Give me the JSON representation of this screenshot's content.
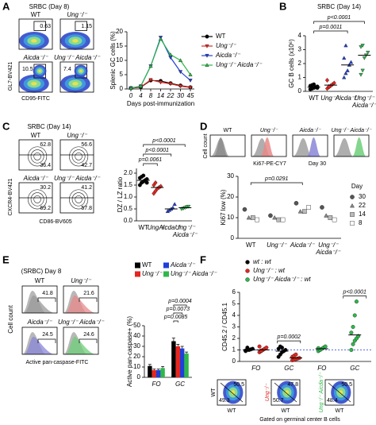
{
  "panels": {
    "A": {
      "label": "A",
      "title": "SRBC (Day 8)",
      "y_axis": "GL7-BV421",
      "x_axis": "CD95-FITC",
      "plots": [
        {
          "name": "WT",
          "value": 0.63
        },
        {
          "name": "Ung⁻/⁻",
          "value": 1.15
        },
        {
          "name": "Aicda⁻/⁻",
          "value": 10.5
        },
        {
          "name": "Ung⁻/⁻ Aicda⁻/⁻",
          "value": 7.4
        }
      ]
    },
    "B": {
      "label": "B"
    },
    "C": {
      "label": "C",
      "title": "SRBC (Day 14)",
      "y_axis": "CXCR4-BV421",
      "x_axis": "CD86-BV605",
      "plots": [
        {
          "name": "WT",
          "top": 62.8,
          "bottom": 36.4
        },
        {
          "name": "Ung⁻/⁻",
          "top": 56.6,
          "bottom": 42.7
        },
        {
          "name": "Aicda⁻/⁻",
          "top": 30.2,
          "bottom": 69.2
        },
        {
          "name": "Ung⁻/⁻ Aicda⁻/⁻",
          "top": 41.2,
          "bottom": 57.8
        }
      ]
    },
    "D": {
      "label": "D",
      "y_axis": "Cell count",
      "x_axis": "Ki67-PE-CY7",
      "day": "Day 30",
      "plots": [
        {
          "name": "WT",
          "color": "#8c8c8c"
        },
        {
          "name": "Ung⁻/⁻",
          "color": "#e98888"
        },
        {
          "name": "Aicda⁻/⁻",
          "color": "#8a86d8"
        },
        {
          "name": "Ung⁻/⁻ Aicda⁻/⁻",
          "color": "#6fcf7a"
        }
      ]
    },
    "E": {
      "label": "E",
      "title": "(SRBC) Day 8",
      "y_axis": "Cell count",
      "x_axis": "Active pan-caspase-FITC",
      "plots": [
        {
          "name": "WT",
          "value": 41.8,
          "color": "#9a9a9a"
        },
        {
          "name": "Ung⁻/⁻",
          "value": 21.6,
          "color": "#e98888"
        },
        {
          "name": "Aicda⁻/⁻",
          "value": 24.5,
          "color": "#8a86d8"
        },
        {
          "name": "Ung⁻/⁻ Aicda⁻/⁻",
          "value": 24.6,
          "color": "#6fcf7a"
        }
      ]
    },
    "F": {
      "label": "F",
      "x_axis": "WT",
      "caption": "Gated on germinal center B cells",
      "plots": [
        {
          "name": "WT",
          "top": 50.5,
          "bottom": 49.3,
          "color": "#000000"
        },
        {
          "name": "Ung⁻/⁻",
          "top": 47.8,
          "bottom": 50.7,
          "color": "#e4261f"
        },
        {
          "name": "Ung⁻/⁻ Aicda⁻/⁻",
          "top": 50.5,
          "bottom": 48.4,
          "color": "#2db84a"
        }
      ]
    }
  },
  "chart_data": [
    {
      "type": "line",
      "ylabel": "Splenic GC cells (%)",
      "xlabel": "Days post-immunization",
      "categories": [
        "0",
        "4",
        "8",
        "14",
        "22",
        "30",
        "45"
      ],
      "ylim": [
        0,
        20
      ],
      "yticks": [
        0,
        5,
        10,
        15,
        20
      ],
      "series": [
        {
          "name": "WT",
          "color": "#000000",
          "marker": "circle",
          "values": [
            0.3,
            0.6,
            3,
            2.8,
            2,
            1.2,
            0.6
          ]
        },
        {
          "name": "Ung⁻/⁻",
          "color": "#e4261f",
          "marker": "triangle-down",
          "values": [
            0.3,
            0.7,
            3.2,
            2.3,
            1.8,
            1,
            0.5
          ]
        },
        {
          "name": "Aicda⁻/⁻",
          "color": "#1f3fd9",
          "marker": "triangle-down",
          "values": [
            0.3,
            1,
            8,
            18,
            11,
            6,
            3
          ]
        },
        {
          "name": "Ung⁻/⁻ Aicda⁻/⁻",
          "color": "#2db84a",
          "marker": "triangle",
          "values": [
            0.3,
            1,
            8,
            17.5,
            12,
            10,
            5
          ]
        }
      ]
    },
    {
      "type": "dot",
      "title": "SRBC (Day 14)",
      "ylabel": "GC B cells (x10⁶)",
      "categories": [
        "WT",
        "Ung⁻/⁻",
        "Aicda⁻/⁻",
        "Ung⁻/⁻ Aicda⁻/⁻"
      ],
      "ylim": [
        0,
        4
      ],
      "yticks": [
        0,
        1,
        2,
        3,
        4
      ],
      "series": [
        {
          "color": "#000000",
          "marker": "circle",
          "points": [
            [
              0.15,
              0.2,
              0.25,
              0.3,
              0.35,
              0.4,
              0.45,
              0.5,
              0.3,
              0.25
            ],
            null,
            null,
            null
          ],
          "means": [
            0.3,
            null,
            null,
            null
          ]
        },
        {
          "color": "#e4261f",
          "marker": "diamond",
          "points": [
            null,
            [
              0.2,
              0.3,
              0.4,
              0.5,
              0.6,
              0.8,
              0.35
            ],
            null,
            null
          ],
          "means": [
            null,
            0.45,
            null,
            null
          ]
        },
        {
          "color": "#1f3fd9",
          "marker": "triangle",
          "points": [
            null,
            null,
            [
              1.0,
              1.3,
              1.5,
              1.9,
              2.1,
              2.4,
              3.3
            ],
            null
          ],
          "means": [
            null,
            null,
            1.9,
            null
          ]
        },
        {
          "color": "#2db84a",
          "marker": "triangle-down",
          "points": [
            null,
            null,
            null,
            [
              1.2,
              1.5,
              2.4,
              2.6,
              2.8,
              3.2,
              3.3
            ]
          ],
          "means": [
            null,
            null,
            null,
            2.6
          ]
        }
      ],
      "annotations": [
        {
          "text": "p<0.0001",
          "groups": [
            0,
            3
          ]
        },
        {
          "text": "p=0.0011",
          "groups": [
            0,
            2
          ]
        }
      ]
    },
    {
      "type": "dot",
      "ylabel": "DZ / LZ ratio",
      "categories": [
        "WT",
        "Ung⁻/⁻",
        "Aicda⁻/⁻",
        "Ung⁻/⁻ Aicda⁻/⁻"
      ],
      "ylim": [
        0,
        2.2
      ],
      "yticks": [
        {
          "value": 0,
          "label": "0.0"
        },
        0.5,
        {
          "value": 1,
          "label": "1.0"
        },
        1.5,
        {
          "value": 2,
          "label": "2.0"
        }
      ],
      "series": [
        {
          "color": "#000000",
          "marker": "circle",
          "points": [
            [
              1.5,
              1.6,
              1.65,
              1.7,
              1.75,
              1.8,
              1.85,
              1.9,
              1.7,
              1.6
            ],
            null,
            null,
            null
          ],
          "means": [
            1.7,
            null,
            null,
            null
          ]
        },
        {
          "color": "#e4261f",
          "marker": "diamond",
          "points": [
            null,
            [
              1.15,
              1.25,
              1.35,
              1.4,
              1.45,
              1.5,
              1.6
            ],
            null,
            null
          ],
          "means": [
            null,
            1.4,
            null,
            null
          ]
        },
        {
          "color": "#1f3fd9",
          "marker": "triangle",
          "points": [
            null,
            null,
            [
              0.4,
              0.45,
              0.5,
              0.55,
              0.7
            ],
            null
          ],
          "means": [
            null,
            null,
            0.5,
            null
          ]
        },
        {
          "color": "#2db84a",
          "marker": "triangle-down",
          "points": [
            null,
            null,
            null,
            [
              0.5,
              0.52,
              0.55,
              0.58,
              0.6
            ]
          ],
          "means": [
            null,
            null,
            null,
            0.55
          ]
        }
      ],
      "annotations": [
        {
          "text": "p<0.0001",
          "groups": [
            0,
            3
          ]
        },
        {
          "text": "p<0.0001",
          "groups": [
            0,
            2
          ]
        },
        {
          "text": "p=0.0061",
          "groups": [
            0,
            1
          ]
        }
      ]
    },
    {
      "type": "grouped_dot",
      "ylabel": "Ki67 low (%)",
      "legend_title": "Day",
      "categories": [
        "WT",
        "Ung⁻/⁻",
        "Aicda⁻/⁻",
        "Ung⁻/⁻ Aicda⁻/⁻"
      ],
      "ylim": [
        0,
        30
      ],
      "yticks": [
        0,
        10,
        20,
        30
      ],
      "series": [
        {
          "name": "30",
          "color": "#555555",
          "marker": "circle",
          "values": [
            14,
            11,
            17,
            15
          ]
        },
        {
          "name": "22",
          "color": "#888888",
          "marker": "triangle",
          "values": [
            10,
            10,
            13,
            11
          ]
        },
        {
          "name": "14",
          "color": "#bbbbbb",
          "marker": "square",
          "values": [
            10,
            9,
            13,
            10
          ]
        },
        {
          "name": "8",
          "color": "#ffffff",
          "marker": "square",
          "values": [
            9,
            9,
            15,
            9
          ]
        }
      ],
      "annotations": [
        {
          "text": "p=0.0291",
          "groups": [
            0,
            2
          ]
        }
      ]
    },
    {
      "type": "bar",
      "ylabel": "Active pan-caspase+ (%)",
      "categories": [
        "FO",
        "GC"
      ],
      "ylim": [
        0,
        50
      ],
      "yticks": [
        0,
        10,
        20,
        30,
        40,
        50
      ],
      "series": [
        {
          "name": "WT",
          "color": "#000000",
          "values": [
            11,
            35
          ],
          "errors": [
            1.5,
            3
          ]
        },
        {
          "name": "Ung⁻/⁻",
          "color": "#e4261f",
          "values": [
            7,
            30
          ],
          "errors": [
            1,
            2
          ]
        },
        {
          "name": "Aicda⁻/⁻",
          "color": "#1f3fd9",
          "values": [
            7,
            28
          ],
          "errors": [
            1,
            2
          ]
        },
        {
          "name": "Ung⁻/⁻ Aicda⁻/⁻",
          "color": "#2db84a",
          "values": [
            9,
            23
          ],
          "errors": [
            1.5,
            1.5
          ]
        }
      ],
      "annotations": [
        {
          "text": "p=0.0004",
          "category": 1,
          "series": [
            0,
            3
          ]
        },
        {
          "text": "p=0.0073",
          "category": 1,
          "series": [
            0,
            2
          ]
        },
        {
          "text": "p=0.0085",
          "category": 1,
          "series": [
            0,
            1
          ]
        }
      ]
    },
    {
      "type": "dot",
      "ylabel": "CD45.2 / CD45.1",
      "legend": true,
      "reference_line": 1,
      "categories": [
        "FO",
        "GC",
        "FO",
        "GC"
      ],
      "ylim": [
        0,
        6
      ],
      "yticks": [
        0,
        1,
        2,
        3,
        4,
        5,
        6
      ],
      "series": [
        {
          "name": "wt : wt",
          "color": "#000000",
          "marker": "circle",
          "points": [
            [
              0.9,
              1,
              1,
              1.05,
              1.1,
              0.95,
              1.2
            ],
            [
              0.4,
              0.6,
              0.8,
              0.9,
              1,
              1.1,
              1.3,
              1.2
            ],
            null,
            null
          ],
          "means": [
            1,
            0.9,
            null,
            null
          ]
        },
        {
          "name": "Ung⁻/⁻ : wt",
          "color": "#e4261f",
          "marker": "circle",
          "points": [
            [
              0.8,
              0.9,
              1,
              1.1,
              1.2,
              1.3,
              0.95
            ],
            [
              0.1,
              0.15,
              0.2,
              0.25,
              0.3,
              0.4,
              0.5,
              0.6
            ],
            null,
            null
          ],
          "means": [
            1,
            0.3,
            null,
            null
          ]
        },
        {
          "name": "Ung⁻/⁻ Aicda⁻/⁻ : wt",
          "color": "#2db84a",
          "marker": "circle",
          "points": [
            null,
            null,
            [
              0.9,
              1,
              1.1,
              1.2,
              1.3,
              1.15
            ],
            [
              1,
              1.5,
              1.8,
              2,
              2.2,
              2.5,
              3,
              4,
              5.2
            ]
          ],
          "means": [
            null,
            null,
            1.1,
            2.3
          ]
        }
      ],
      "annotations": [
        {
          "text": "p=0.0002",
          "category": 1
        },
        {
          "text": "p<0.0001",
          "category": 3
        }
      ]
    }
  ]
}
